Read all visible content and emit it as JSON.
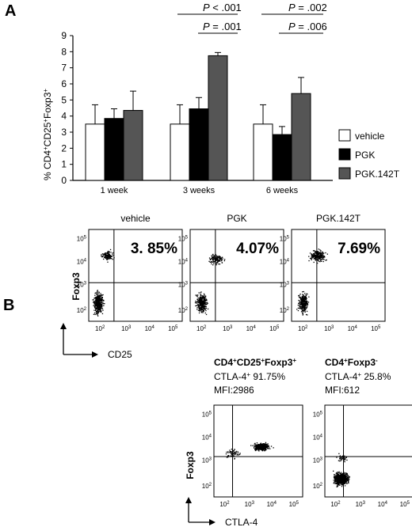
{
  "panel_a": {
    "letter": "A",
    "chart_data": {
      "type": "bar",
      "ylabel_parts": [
        "% CD4",
        "+",
        "CD25",
        "+",
        "Foxp3",
        "+"
      ],
      "categories": [
        "1 week",
        "3 weeks",
        "6 weeks"
      ],
      "ylim": [
        0,
        9
      ],
      "yticks": [
        "0",
        "1",
        "2",
        "3",
        "4",
        "5",
        "6",
        "7",
        "8",
        "9"
      ],
      "series": [
        {
          "name": "vehicle",
          "color": "#ffffff",
          "values": [
            3.5,
            3.5,
            3.5
          ],
          "errors": [
            1.2,
            1.2,
            1.2
          ]
        },
        {
          "name": "PGK",
          "color": "#000000",
          "values": [
            3.85,
            4.45,
            2.85
          ],
          "errors": [
            0.6,
            0.7,
            0.5
          ]
        },
        {
          "name": "PGK.142T",
          "color": "#555555",
          "values": [
            4.35,
            7.75,
            5.4
          ],
          "errors": [
            1.2,
            0.2,
            1.0
          ]
        }
      ],
      "legend_position": "right",
      "significance": [
        {
          "p_label": "P",
          "p_text": " < .001"
        },
        {
          "p_label": "P",
          "p_text": " = .001"
        },
        {
          "p_label": "P",
          "p_text": " = .002"
        },
        {
          "p_label": "P",
          "p_text": " = .006"
        }
      ]
    }
  },
  "panel_b": {
    "letter": "B",
    "top_plots": [
      {
        "title": "vehicle",
        "percent": "3. 85%"
      },
      {
        "title": "PGK",
        "percent": "4.07%"
      },
      {
        "title": "PGK.142T",
        "percent": "7.69%"
      }
    ],
    "top_axis": {
      "ylabel": "Foxp3",
      "arrow_xlabel": "CD25",
      "ticks": [
        "10",
        "2",
        "10",
        "3",
        "10",
        "4",
        "10",
        "5"
      ]
    },
    "bottom_plots": [
      {
        "head_parts": [
          "CD4",
          "+",
          "CD25",
          "+",
          "Foxp3",
          "+"
        ],
        "line2": "CTLA-4",
        "line2_sup": "+",
        "line2_val": " 91.75%",
        "line3": "MFI:2986"
      },
      {
        "head_parts": [
          "CD4",
          "+",
          "Foxp3",
          "-"
        ],
        "line2": "CTLA-4",
        "line2_sup": "+",
        "line2_val": " 25.8%",
        "line3": "MFI:612"
      }
    ],
    "bottom_axis": {
      "ylabel": "Foxp3",
      "arrow_xlabel": "CTLA-4"
    }
  }
}
